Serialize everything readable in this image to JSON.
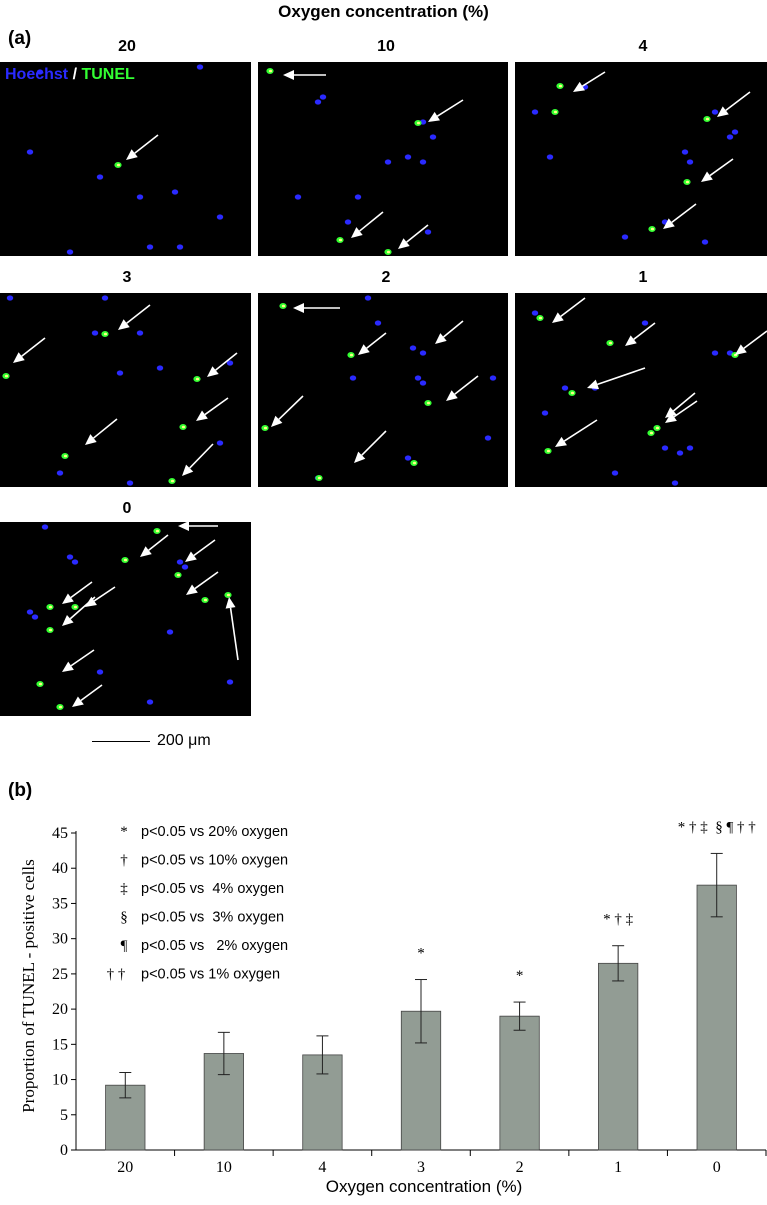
{
  "figure_title": "Oxygen concentration (%)",
  "panel_a_label": "(a)",
  "panel_b_label": "(b)",
  "stain_legend": {
    "hoechst": "Hoechst",
    "separator": " / ",
    "tunel": "TUNEL"
  },
  "micrographs": [
    {
      "label": "20",
      "tunel_arrows": 1
    },
    {
      "label": "10",
      "tunel_arrows": 4
    },
    {
      "label": "4",
      "tunel_arrows": 5
    },
    {
      "label": "3",
      "tunel_arrows": 6
    },
    {
      "label": "2",
      "tunel_arrows": 6
    },
    {
      "label": "1",
      "tunel_arrows": 7
    },
    {
      "label": "0",
      "tunel_arrows": 11
    }
  ],
  "scale_bar": "200 μm",
  "colors": {
    "bar": "#929c94",
    "hoechst": "#2a2aff",
    "tunel": "#33ff33",
    "background": "#000000"
  },
  "chart_data": {
    "type": "bar",
    "categories": [
      "20",
      "10",
      "4",
      "3",
      "2",
      "1",
      "0"
    ],
    "values": [
      9.2,
      13.7,
      13.5,
      19.7,
      19.0,
      26.5,
      37.6
    ],
    "error": [
      1.8,
      3.0,
      2.7,
      4.5,
      2.0,
      2.5,
      4.5
    ],
    "significance": [
      "",
      "",
      "",
      "*",
      "*",
      "* † ‡",
      "* † ‡  § ¶ † †"
    ],
    "title": "",
    "xlabel": "Oxygen concentration (%)",
    "ylabel": "Proportion of  TUNEL - positive cells",
    "ylim": [
      0,
      45
    ],
    "yticks": [
      0,
      5,
      10,
      15,
      20,
      25,
      30,
      35,
      40,
      45
    ],
    "grid": false,
    "legend_placement": "top-left",
    "legend": [
      {
        "symbol": "*",
        "text": "p<0.05 vs 20% oxygen"
      },
      {
        "symbol": "†",
        "text": "p<0.05 vs 10% oxygen"
      },
      {
        "symbol": "‡",
        "text": "p<0.05 vs  4% oxygen"
      },
      {
        "symbol": "§",
        "text": "p<0.05 vs  3% oxygen"
      },
      {
        "symbol": "¶",
        "text": "p<0.05 vs   2% oxygen"
      },
      {
        "symbol": "† †",
        "text": "p<0.05 vs 1% oxygen"
      }
    ]
  }
}
